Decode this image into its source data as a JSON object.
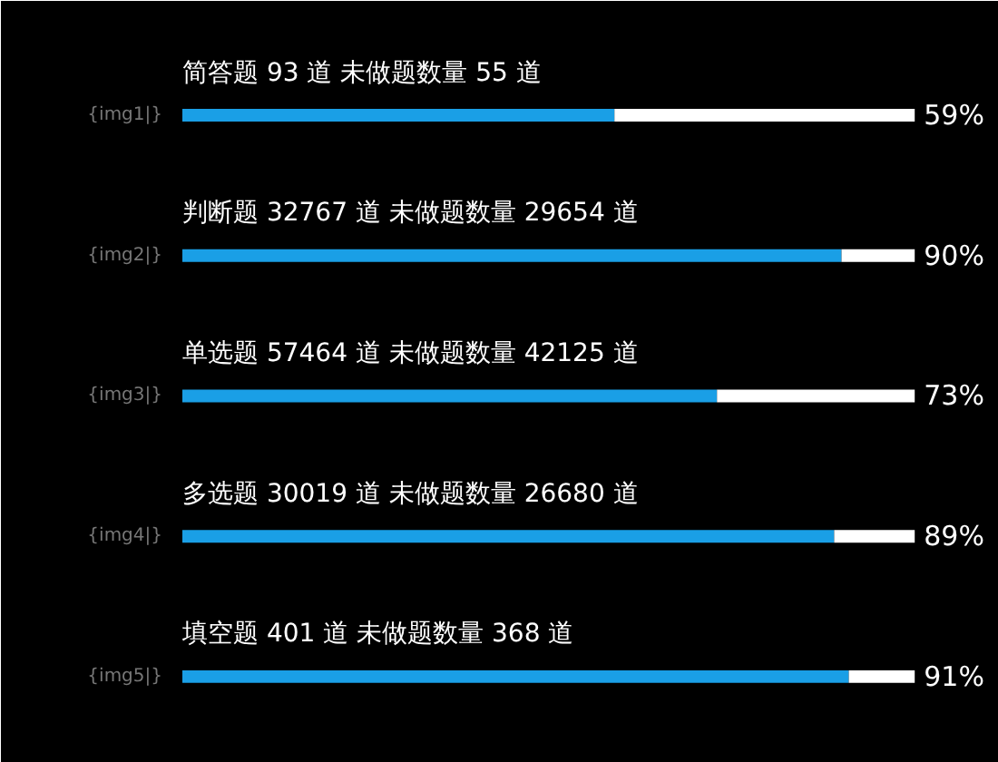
{
  "chart_data": {
    "type": "bar",
    "orientation": "horizontal",
    "stacked": true,
    "tick_labels": "y",
    "grid": false,
    "categories": [
      "{img1|}",
      "{img2|}",
      "{img3|}",
      "{img4|}",
      "{img5|}"
    ],
    "series": [
      {
        "color": "#1a9fe6",
        "values": [
          59,
          90,
          73,
          89,
          91
        ],
        "value_labels": [
          "59%",
          "90%",
          "73%",
          "89%",
          "91%"
        ]
      },
      {
        "color": "#ffffff",
        "values": [
          41,
          10,
          27,
          11,
          9
        ]
      }
    ],
    "annotations": [
      "简答题 93 道  未做题数量 55 道",
      "判断题 32767 道  未做题数量 29654 道",
      "单选题  57464 道  未做题数量 42125 道",
      "多选题 30019 道  未做题数量 26680 道",
      "填空题 401 道  未做题数量 368 道"
    ]
  }
}
